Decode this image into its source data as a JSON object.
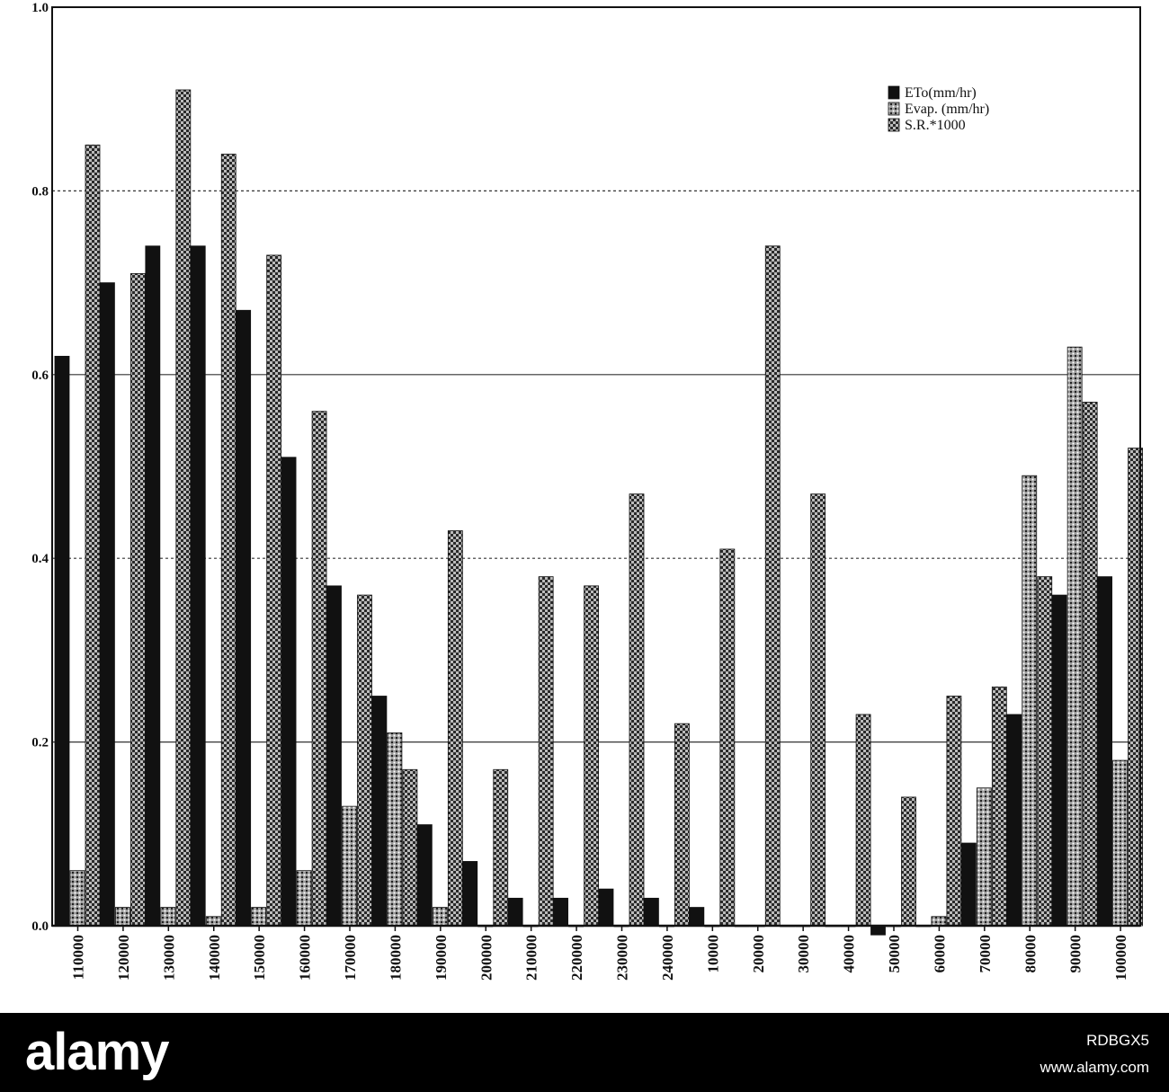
{
  "chart_data": {
    "type": "bar",
    "categories": [
      "110000",
      "120000",
      "130000",
      "140000",
      "150000",
      "160000",
      "170000",
      "180000",
      "190000",
      "200000",
      "210000",
      "220000",
      "230000",
      "240000",
      "10000",
      "20000",
      "30000",
      "40000",
      "50000",
      "60000",
      "70000",
      "80000",
      "90000",
      "100000"
    ],
    "series": [
      {
        "name": "ETo(mm/hr)",
        "color": "#111111",
        "pattern": "solid",
        "values": [
          0.62,
          0.7,
          0.74,
          0.74,
          0.67,
          0.51,
          0.37,
          0.25,
          0.11,
          0.07,
          0.03,
          0.03,
          0.04,
          0.03,
          0.02,
          0.0,
          0.0,
          0.0,
          -0.01,
          0.0,
          0.09,
          0.23,
          0.36,
          0.38
        ]
      },
      {
        "name": "Evap. (mm/hr)",
        "color": "#777777",
        "pattern": "dots",
        "values": [
          0.06,
          0.02,
          0.02,
          0.01,
          0.02,
          0.06,
          0.13,
          0.21,
          0.02,
          0.0,
          0.0,
          0.0,
          0.0,
          0.0,
          0.0,
          0.0,
          0.0,
          0.0,
          0.0,
          0.01,
          0.15,
          0.49,
          0.63,
          0.18
        ]
      },
      {
        "name": "S.R.*1000",
        "color": "#333333",
        "pattern": "checker",
        "values": [
          0.85,
          0.71,
          0.91,
          0.84,
          0.73,
          0.56,
          0.36,
          0.17,
          0.43,
          0.17,
          0.38,
          0.37,
          0.47,
          0.22,
          0.41,
          0.74,
          0.47,
          0.23,
          0.14,
          0.25,
          0.26,
          0.38,
          0.57,
          0.52
        ]
      }
    ],
    "yticks": [
      "0.0",
      "0.2",
      "0.4",
      "0.6",
      "0.8",
      "1.0"
    ],
    "ylim": [
      0,
      1.0
    ],
    "grid": "horizontal",
    "legend_position": "top-right",
    "title": "",
    "xlabel": "",
    "ylabel": ""
  },
  "footer": {
    "logo": "alamy",
    "image_id": "RDBGX5",
    "url": "www.alamy.com"
  }
}
